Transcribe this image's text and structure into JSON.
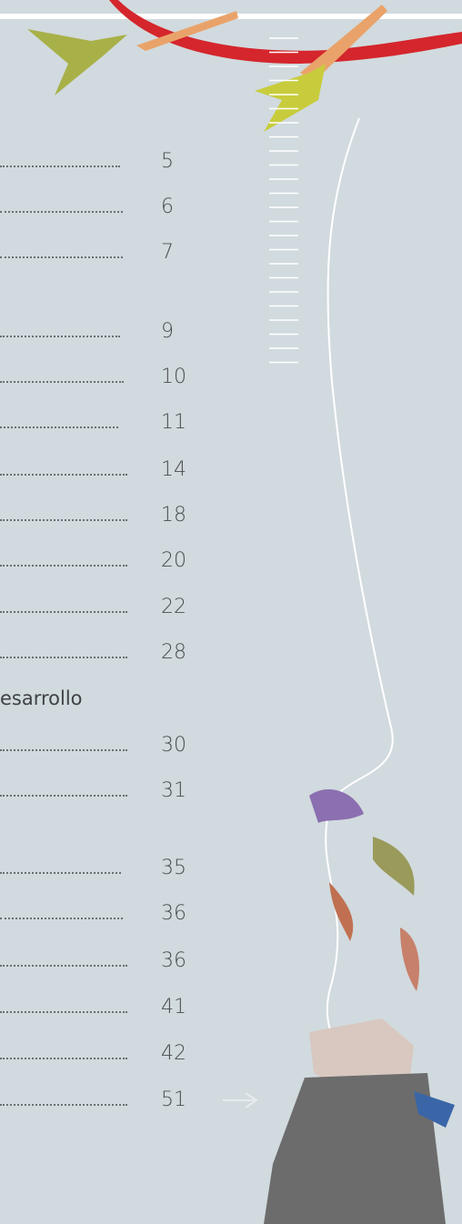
{
  "toc": {
    "rows": [
      {
        "page": "5"
      },
      {
        "page": "6"
      },
      {
        "page": "7"
      },
      {
        "page": "9"
      },
      {
        "page": "10"
      },
      {
        "page": "11"
      },
      {
        "page": "14"
      },
      {
        "page": "18"
      },
      {
        "page": "20"
      },
      {
        "page": "22"
      },
      {
        "page": "28"
      },
      {
        "text": "esarrollo"
      },
      {
        "page": "30"
      },
      {
        "page": "31"
      },
      {
        "page": "35"
      },
      {
        "page": "36"
      },
      {
        "page": "36"
      },
      {
        "page": "41"
      },
      {
        "page": "42"
      },
      {
        "page": "51"
      }
    ]
  }
}
